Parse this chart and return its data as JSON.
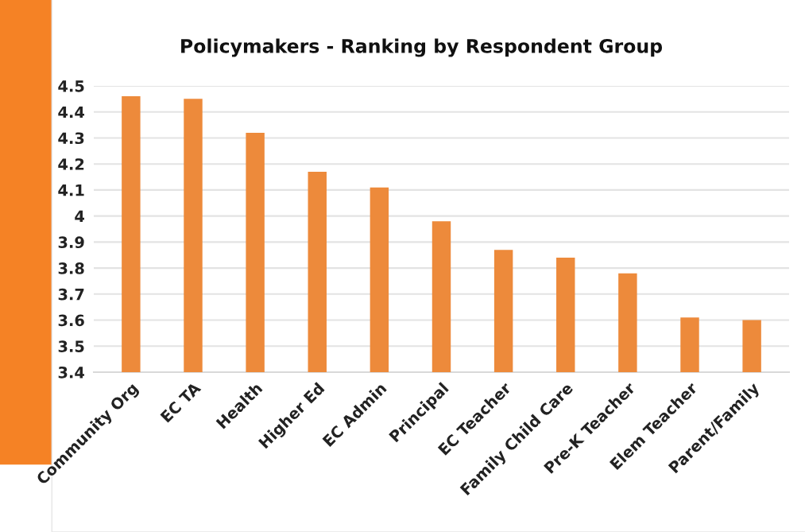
{
  "chart_data": {
    "type": "bar",
    "title": "Policymakers - Ranking by Respondent Group",
    "categories": [
      "Community Org",
      "EC TA",
      "Health",
      "Higher Ed",
      "EC Admin",
      "Principal",
      "EC Teacher",
      "Family Child Care",
      "Pre-K Teacher",
      "Elem Teacher",
      "Parent/Family"
    ],
    "values": [
      4.46,
      4.45,
      4.32,
      4.17,
      4.11,
      3.98,
      3.87,
      3.84,
      3.78,
      3.61,
      3.6
    ],
    "color": "#ed8a3b",
    "ylim": [
      3.4,
      4.5
    ],
    "yticks": [
      {
        "value": 3.4,
        "label": "3.4"
      },
      {
        "value": 3.5,
        "label": "3.5"
      },
      {
        "value": 3.6,
        "label": "3.6"
      },
      {
        "value": 3.7,
        "label": "3.7"
      },
      {
        "value": 3.8,
        "label": "3.8"
      },
      {
        "value": 3.9,
        "label": "3.9"
      },
      4,
      {
        "value": 4.1,
        "label": "4.1"
      },
      {
        "value": 4.2,
        "label": "4.2"
      },
      {
        "value": 4.3,
        "label": "4.3"
      },
      {
        "value": 4.4,
        "label": "4.4"
      },
      {
        "value": 4.5,
        "label": "4.5"
      }
    ],
    "grid": "y"
  }
}
